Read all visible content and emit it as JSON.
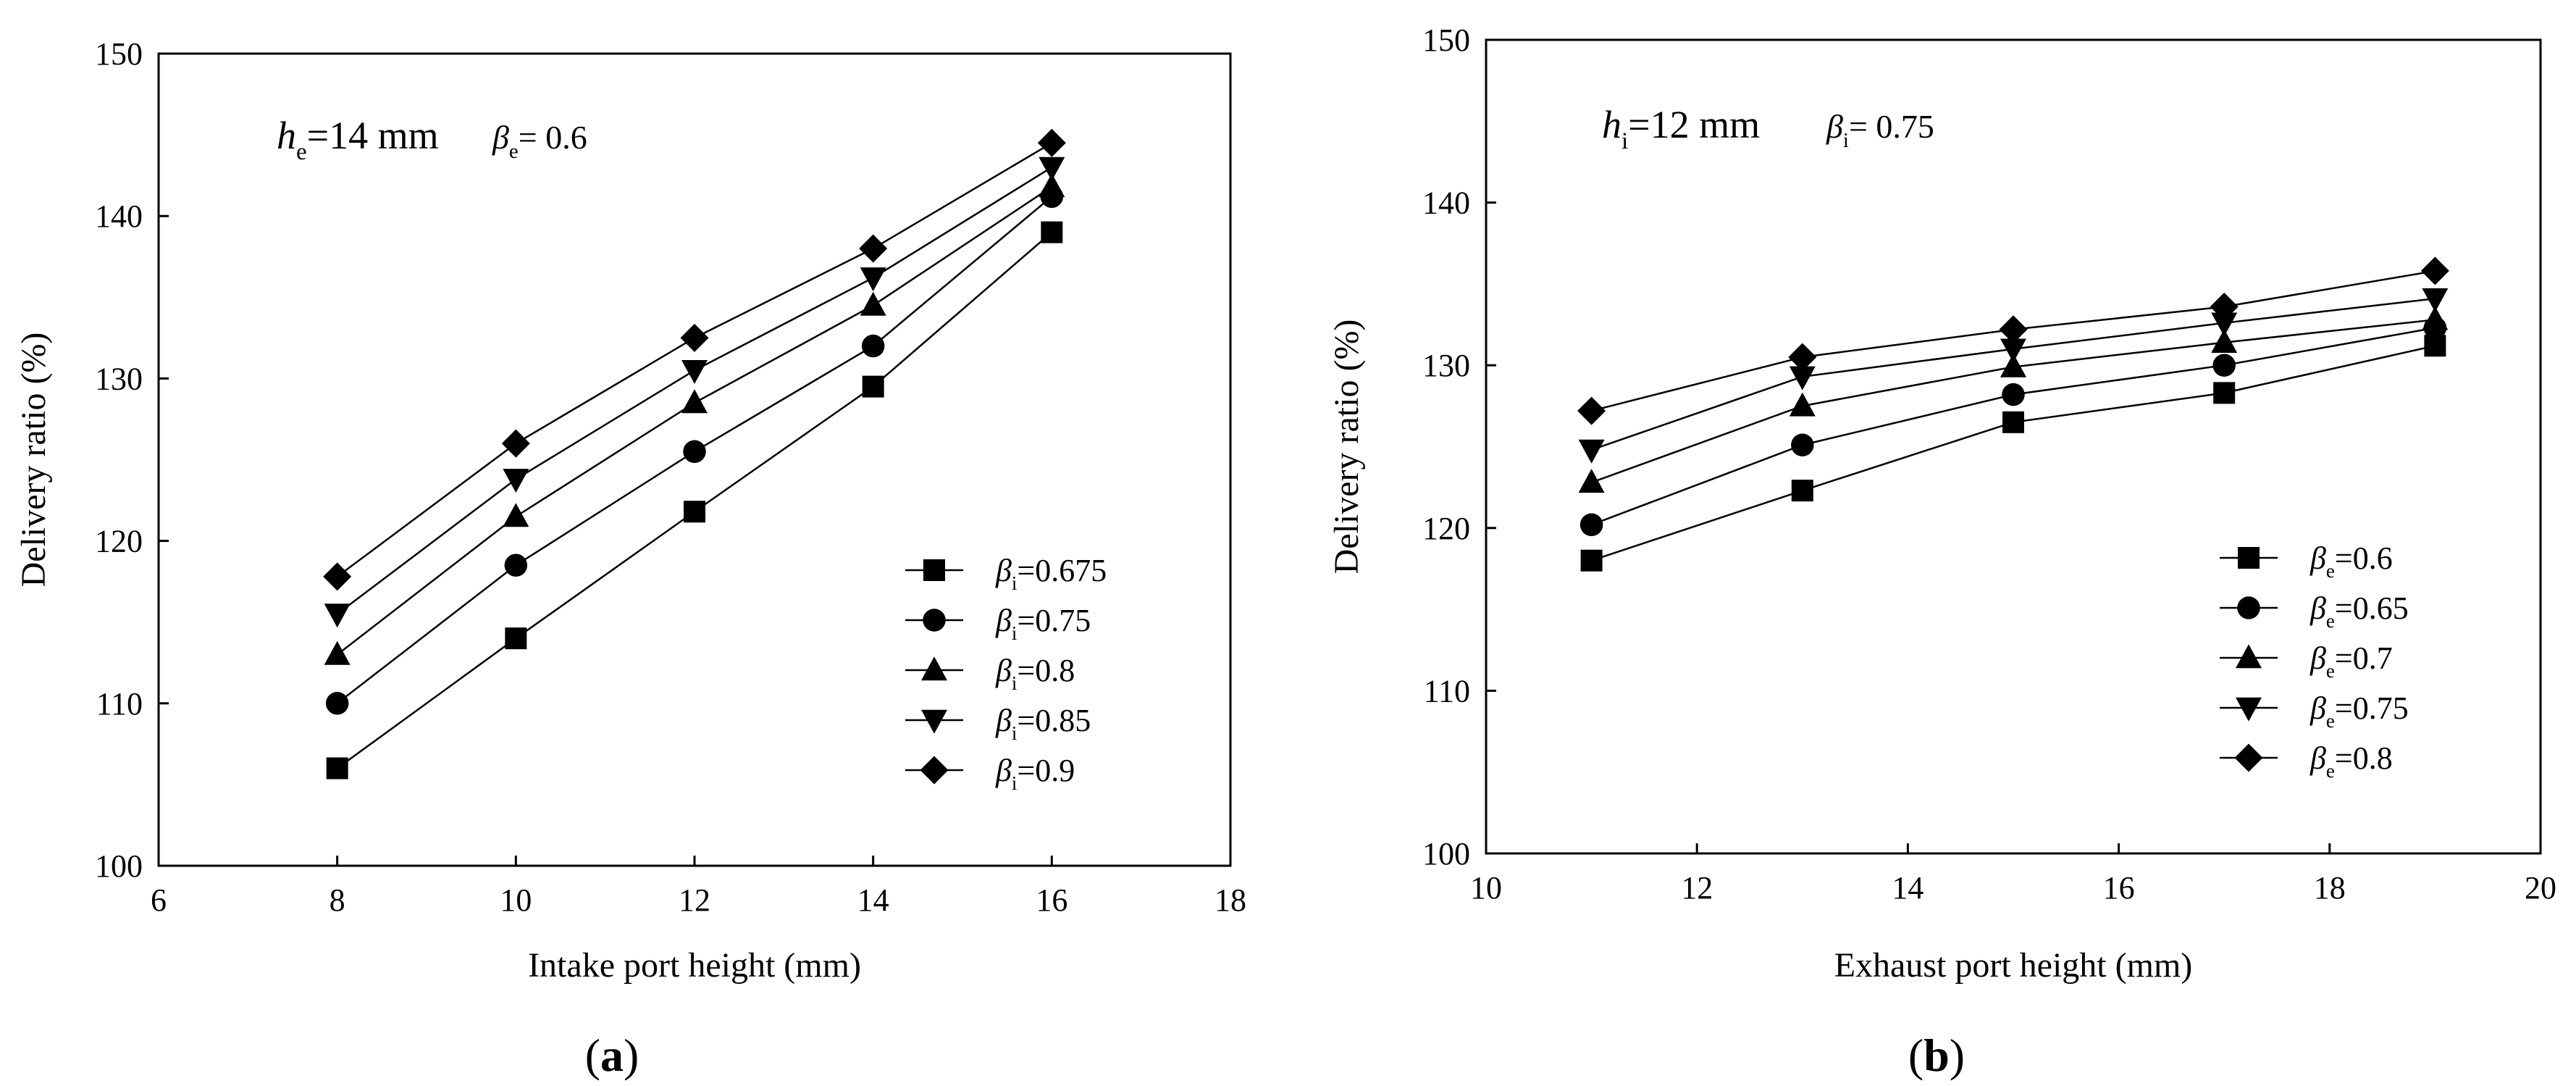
{
  "chart_data": [
    {
      "type": "line",
      "panel_label": "(a)",
      "xlabel": "Intake port height (mm)",
      "ylabel": "Delivery ratio (%)",
      "xlim": [
        6,
        18
      ],
      "ylim": [
        100,
        150
      ],
      "xticks": [
        6,
        8,
        10,
        12,
        14,
        16,
        18
      ],
      "yticks": [
        100,
        110,
        120,
        130,
        140,
        150
      ],
      "annotation": {
        "h_symbol": "h",
        "h_sub": "e",
        "h_value": "=14 mm",
        "beta_symbol": "β",
        "beta_sub": "e",
        "beta_value": "= 0.6"
      },
      "x": [
        8,
        10,
        12,
        14,
        16
      ],
      "series": [
        {
          "name": "βi=0.675",
          "sym": "β",
          "sub": "i",
          "val": "=0.675",
          "marker": "square",
          "values": [
            106,
            114,
            121.8,
            129.5,
            139
          ]
        },
        {
          "name": "βi=0.75",
          "sym": "β",
          "sub": "i",
          "val": "=0.75",
          "marker": "circle",
          "values": [
            110,
            118.5,
            125.5,
            132,
            141.2
          ]
        },
        {
          "name": "βi=0.8",
          "sym": "β",
          "sub": "i",
          "val": "=0.8",
          "marker": "triangle",
          "values": [
            113,
            121.5,
            128.5,
            134.5,
            141.8
          ]
        },
        {
          "name": "βi=0.85",
          "sym": "β",
          "sub": "i",
          "val": "=0.85",
          "marker": "tri-down",
          "values": [
            115.5,
            123.8,
            130.5,
            136.2,
            143
          ]
        },
        {
          "name": "βi=0.9",
          "sym": "β",
          "sub": "i",
          "val": "=0.9",
          "marker": "diamond",
          "values": [
            117.8,
            126,
            132.5,
            138,
            144.5
          ]
        }
      ],
      "legend_position": "bottom-right"
    },
    {
      "type": "line",
      "panel_label": "(b)",
      "xlabel": "Exhaust port height (mm)",
      "ylabel": "Delivery ratio (%)",
      "xlim": [
        10,
        20
      ],
      "ylim": [
        100,
        150
      ],
      "xticks": [
        10,
        12,
        14,
        16,
        18,
        20
      ],
      "yticks": [
        100,
        110,
        120,
        130,
        140,
        150
      ],
      "annotation": {
        "h_symbol": "h",
        "h_sub": "i",
        "h_value": "=12 mm",
        "beta_symbol": "β",
        "beta_sub": "i",
        "beta_value": "= 0.75"
      },
      "x": [
        11,
        13,
        15,
        17,
        19
      ],
      "series": [
        {
          "name": "βe=0.6",
          "sym": "β",
          "sub": "e",
          "val": "=0.6",
          "marker": "square",
          "values": [
            118,
            122.3,
            126.5,
            128.3,
            131.2
          ]
        },
        {
          "name": "βe=0.65",
          "sym": "β",
          "sub": "e",
          "val": "=0.65",
          "marker": "circle",
          "values": [
            120.2,
            125.1,
            128.2,
            130,
            132.3
          ]
        },
        {
          "name": "βe=0.7",
          "sym": "β",
          "sub": "e",
          "val": "=0.7",
          "marker": "triangle",
          "values": [
            122.8,
            127.5,
            129.9,
            131.4,
            132.8
          ]
        },
        {
          "name": "βe=0.75",
          "sym": "β",
          "sub": "e",
          "val": "=0.75",
          "marker": "tri-down",
          "values": [
            124.8,
            129.3,
            131,
            132.6,
            134.1
          ]
        },
        {
          "name": "βe=0.8",
          "sym": "β",
          "sub": "e",
          "val": "=0.8",
          "marker": "diamond",
          "values": [
            127.2,
            130.5,
            132.2,
            133.6,
            135.8
          ]
        }
      ],
      "legend_position": "bottom-right"
    }
  ]
}
